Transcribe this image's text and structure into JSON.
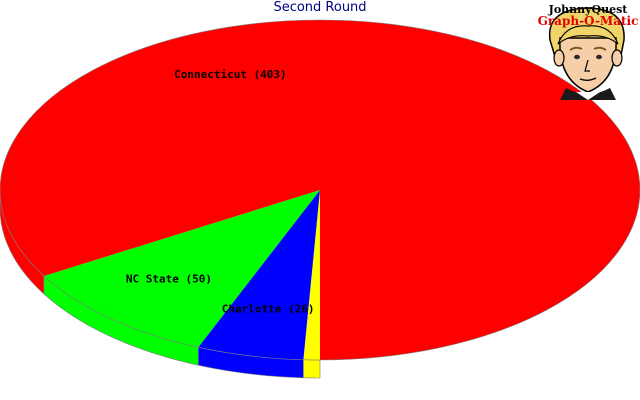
{
  "chart_data": {
    "type": "pie",
    "title": "Second Round",
    "style": "3d",
    "slices": [
      {
        "label": "Connecticut (403)",
        "name": "Connecticut",
        "value": 403,
        "color": "#ff0000"
      },
      {
        "label": "NC State (50)",
        "name": "NC State",
        "value": 50,
        "color": "#00ff00"
      },
      {
        "label": "Charlotte (26)",
        "name": "Charlotte",
        "value": 26,
        "color": "#0000ff"
      },
      {
        "label": "",
        "name": "",
        "value": 4,
        "color": "#ffff00"
      }
    ]
  },
  "logo": {
    "line1": "JohnnyQuest",
    "line2": "Graph-O-Matic",
    "icon": "cartoon-boy-face-icon"
  }
}
